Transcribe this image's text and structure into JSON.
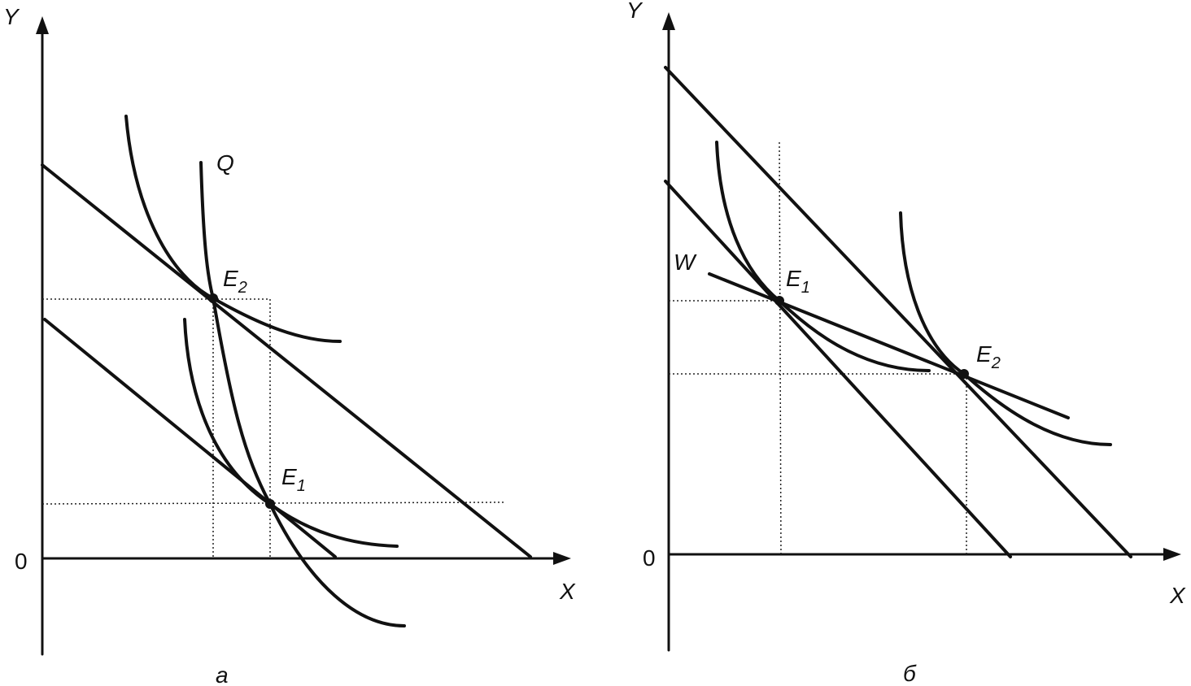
{
  "panel_a": {
    "y_axis": "Y",
    "x_axis": "X",
    "origin": "0",
    "curve_label": "Q",
    "points": [
      {
        "letter": "E",
        "sub": "2"
      },
      {
        "letter": "E",
        "sub": "1"
      }
    ],
    "caption": "a"
  },
  "panel_b": {
    "y_axis": "Y",
    "x_axis": "X",
    "origin": "0",
    "curve_label": "W",
    "points": [
      {
        "letter": "E",
        "sub": "1"
      },
      {
        "letter": "E",
        "sub": "2"
      }
    ],
    "caption": "б"
  }
}
